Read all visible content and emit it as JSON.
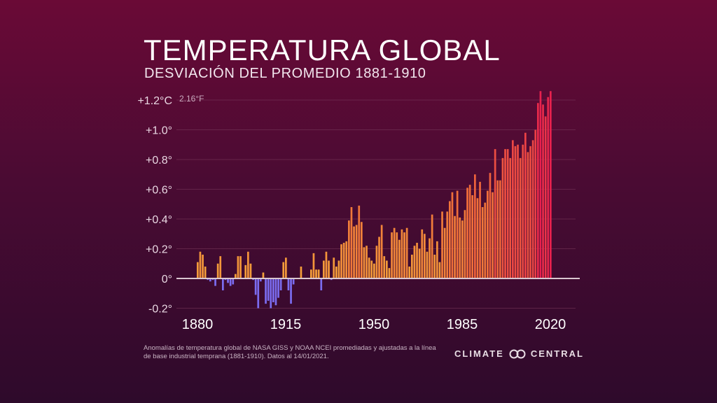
{
  "title": "TEMPERATURA GLOBAL",
  "subtitle": "DESVIACIÓN DEL PROMEDIO 1881-1910",
  "source": "Anomalías de temperatura global de NASA GISS y NOAA NCEI promediadas y ajustadas a la línea de base industrial temprana (1881-1910). Datos al 14/01/2021.",
  "brand": {
    "left": "CLIMATE",
    "right": "CENTRAL"
  },
  "colors": {
    "cold": "#7b6cf0",
    "warm_start": "#f5a53a",
    "warm_end": "#e8214e",
    "zero_line": "#d9c6d0",
    "grid": "#7a3a5c"
  },
  "chart_data": {
    "type": "bar",
    "title": "TEMPERATURA GLOBAL",
    "subtitle": "DESVIACIÓN DEL PROMEDIO 1881-1910",
    "unit_note": "2.16°F",
    "ylim": [
      -0.2,
      1.2
    ],
    "grid": true,
    "y_ticks": [
      {
        "v": 1.2,
        "label": "+1.2°C"
      },
      {
        "v": 1.0,
        "label": "+1.0°"
      },
      {
        "v": 0.8,
        "label": "+0.8°"
      },
      {
        "v": 0.6,
        "label": "+0.6°"
      },
      {
        "v": 0.4,
        "label": "+0.4°"
      },
      {
        "v": 0.2,
        "label": "+0.2°"
      },
      {
        "v": 0.0,
        "label": "0°"
      },
      {
        "v": -0.2,
        "label": "-0.2°"
      }
    ],
    "x_ticks": [
      {
        "year": 1880,
        "label": "1880"
      },
      {
        "year": 1915,
        "label": "1915"
      },
      {
        "year": 1950,
        "label": "1950"
      },
      {
        "year": 1985,
        "label": "1985"
      },
      {
        "year": 2020,
        "label": "2020"
      }
    ],
    "x": [
      1880,
      1881,
      1882,
      1883,
      1884,
      1885,
      1886,
      1887,
      1888,
      1889,
      1890,
      1891,
      1892,
      1893,
      1894,
      1895,
      1896,
      1897,
      1898,
      1899,
      1900,
      1901,
      1902,
      1903,
      1904,
      1905,
      1906,
      1907,
      1908,
      1909,
      1910,
      1911,
      1912,
      1913,
      1914,
      1915,
      1916,
      1917,
      1918,
      1919,
      1920,
      1921,
      1922,
      1923,
      1924,
      1925,
      1926,
      1927,
      1928,
      1929,
      1930,
      1931,
      1932,
      1933,
      1934,
      1935,
      1936,
      1937,
      1938,
      1939,
      1940,
      1941,
      1942,
      1943,
      1944,
      1945,
      1946,
      1947,
      1948,
      1949,
      1950,
      1951,
      1952,
      1953,
      1954,
      1955,
      1956,
      1957,
      1958,
      1959,
      1960,
      1961,
      1962,
      1963,
      1964,
      1965,
      1966,
      1967,
      1968,
      1969,
      1970,
      1971,
      1972,
      1973,
      1974,
      1975,
      1976,
      1977,
      1978,
      1979,
      1980,
      1981,
      1982,
      1983,
      1984,
      1985,
      1986,
      1987,
      1988,
      1989,
      1990,
      1991,
      1992,
      1993,
      1994,
      1995,
      1996,
      1997,
      1998,
      1999,
      2000,
      2001,
      2002,
      2003,
      2004,
      2005,
      2006,
      2007,
      2008,
      2009,
      2010,
      2011,
      2012,
      2013,
      2014,
      2015,
      2016,
      2017,
      2018,
      2019,
      2020
    ],
    "values": [
      0.11,
      0.18,
      0.16,
      0.08,
      -0.01,
      -0.02,
      -0.01,
      -0.05,
      0.1,
      0.15,
      -0.08,
      -0.01,
      -0.03,
      -0.05,
      -0.04,
      0.03,
      0.15,
      0.15,
      0.0,
      0.09,
      0.18,
      0.1,
      -0.01,
      -0.11,
      -0.2,
      -0.02,
      0.04,
      -0.17,
      -0.15,
      -0.2,
      -0.16,
      -0.18,
      -0.13,
      -0.08,
      0.11,
      0.14,
      -0.08,
      -0.17,
      -0.04,
      0.0,
      0.0,
      0.08,
      0.0,
      0.0,
      0.0,
      0.06,
      0.17,
      0.06,
      0.06,
      -0.08,
      0.12,
      0.18,
      0.12,
      -0.01,
      0.14,
      0.08,
      0.12,
      0.23,
      0.24,
      0.25,
      0.39,
      0.48,
      0.35,
      0.36,
      0.49,
      0.38,
      0.21,
      0.22,
      0.14,
      0.12,
      0.1,
      0.22,
      0.28,
      0.36,
      0.15,
      0.12,
      0.07,
      0.31,
      0.34,
      0.31,
      0.26,
      0.33,
      0.31,
      0.34,
      0.08,
      0.16,
      0.22,
      0.24,
      0.2,
      0.33,
      0.3,
      0.18,
      0.27,
      0.43,
      0.16,
      0.25,
      0.11,
      0.45,
      0.34,
      0.45,
      0.52,
      0.58,
      0.42,
      0.59,
      0.41,
      0.39,
      0.46,
      0.61,
      0.63,
      0.56,
      0.7,
      0.54,
      0.65,
      0.48,
      0.51,
      0.59,
      0.71,
      0.58,
      0.87,
      0.66,
      0.66,
      0.81,
      0.87,
      0.87,
      0.81,
      0.93,
      0.89,
      0.9,
      0.81,
      0.9,
      0.98,
      0.85,
      0.89,
      0.93,
      1.0,
      1.18,
      1.26,
      1.17,
      1.09,
      1.22,
      1.26
    ]
  }
}
